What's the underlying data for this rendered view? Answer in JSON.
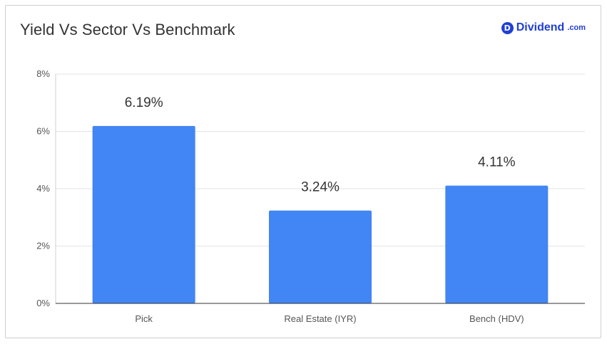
{
  "title": "Yield Vs Sector Vs Benchmark",
  "brand": {
    "mark": "D",
    "name": "Dividend",
    "suffix": ".com"
  },
  "colors": {
    "bar": "#4285f4",
    "grid": "#e3e3e3",
    "axis": "#333333",
    "brand": "#1f3fd6"
  },
  "chart_data": {
    "type": "bar",
    "title": "Yield Vs Sector Vs Benchmark",
    "categories": [
      "Pick",
      "Real Estate (IYR)",
      "Bench (HDV)"
    ],
    "values": [
      6.19,
      3.24,
      4.11
    ],
    "data_labels": [
      "6.19%",
      "3.24%",
      "4.11%"
    ],
    "ylim": [
      0,
      8
    ],
    "yticks": [
      0,
      2,
      4,
      6,
      8
    ],
    "ytick_labels": [
      "0%",
      "2%",
      "4%",
      "6%",
      "8%"
    ],
    "xlabel": "",
    "ylabel": "",
    "grid": true,
    "legend": "none"
  }
}
